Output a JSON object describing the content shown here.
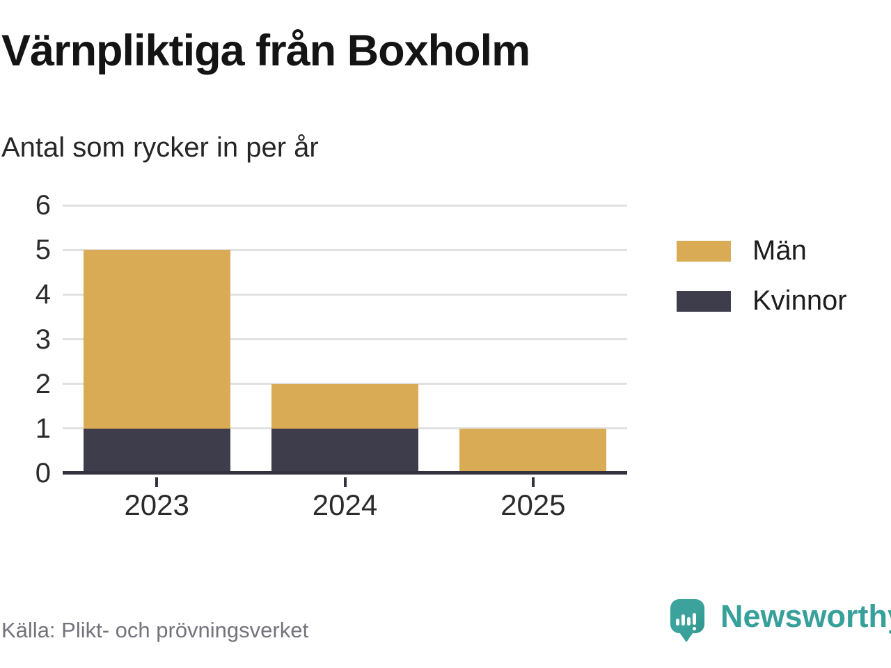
{
  "header": {
    "title": "Värnpliktiga från Boxholm",
    "subtitle": "Antal som rycker in per år"
  },
  "chart_data": {
    "type": "bar",
    "stacked": true,
    "title": "Värnpliktiga från Boxholm",
    "subtitle": "Antal som rycker in per år",
    "categories": [
      "2023",
      "2024",
      "2025"
    ],
    "series": [
      {
        "name": "Kvinnor",
        "color": "#3e3d4c",
        "values": [
          1,
          1,
          0
        ]
      },
      {
        "name": "Män",
        "color": "#d9ab55",
        "values": [
          4,
          1,
          1
        ]
      }
    ],
    "totals": [
      5,
      2,
      1
    ],
    "xlabel": "",
    "ylabel": "",
    "ylim": [
      0,
      6
    ],
    "yticks": [
      0,
      1,
      2,
      3,
      4,
      5,
      6
    ],
    "grid": true,
    "legend_position": "right"
  },
  "legend": {
    "items": [
      {
        "label": "Män",
        "color": "#d9ab55"
      },
      {
        "label": "Kvinnor",
        "color": "#3e3d4c"
      }
    ]
  },
  "footer": {
    "source": "Källa: Plikt- och prövningsverket",
    "brand": "Newsworthy"
  },
  "colors": {
    "men_bar": "#d9ab55",
    "women_bar": "#3e3d4c",
    "gridline": "#e1e1e1",
    "axis": "#33323e",
    "tick_text": "#2b2b2b",
    "title_text": "#141414",
    "source_text": "#73737b",
    "brand_teal": "#38a09a"
  }
}
